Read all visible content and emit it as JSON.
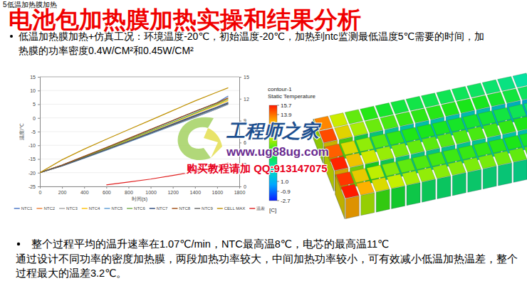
{
  "header": {
    "section": "5低温加热膜加热",
    "title": "电池包加热膜加热实操和结果分析"
  },
  "intro": [
    "低温加热膜加热+仿真工况：环境温度-20℃，初始温度-20℃，加热到ntc监测最低温度5℃需要的时间，加",
    "热膜的功率密度0.4W/CM²和0.45W/CM²"
  ],
  "chart_data": {
    "type": "line",
    "x_label": "时间(s)",
    "y_label": "温度/℃",
    "x": [
      0,
      200,
      400,
      600,
      800,
      1000,
      1200,
      1400,
      1600,
      1700
    ],
    "xlim": [
      0,
      1800
    ],
    "xticks": [
      0,
      200,
      400,
      600,
      800,
      1000,
      1200,
      1400,
      1600,
      1800
    ],
    "ylim": [
      -25,
      15
    ],
    "yticks": [
      -25,
      -20,
      -15,
      -10,
      -5,
      0,
      5,
      10,
      15
    ],
    "y2lim": [
      0,
      15
    ],
    "y2ticks": [
      0,
      3,
      6,
      9,
      12,
      15
    ],
    "grid": true,
    "legend": "bottom",
    "series": [
      {
        "name": "NTC1",
        "color": "#4472c4",
        "values": [
          -20,
          -17.2,
          -14.1,
          -10.9,
          -7.6,
          -4.3,
          -1.0,
          2.3,
          5.6,
          8.0
        ]
      },
      {
        "name": "NTC2",
        "color": "#ed7d31",
        "values": [
          -20,
          -17.5,
          -14.6,
          -11.7,
          -8.7,
          -5.7,
          -2.7,
          0.3,
          3.3,
          5.0
        ]
      },
      {
        "name": "NTC3",
        "color": "#a5a5a5",
        "values": [
          -20,
          -17.4,
          -14.4,
          -11.4,
          -8.3,
          -5.2,
          -2.1,
          1.0,
          4.1,
          5.8
        ]
      },
      {
        "name": "NTC4",
        "color": "#ffc000",
        "values": [
          -20,
          -17.3,
          -14.3,
          -11.2,
          -8.1,
          -4.9,
          -1.7,
          1.5,
          4.7,
          6.4
        ]
      },
      {
        "name": "NTC5",
        "color": "#5b9bd5",
        "values": [
          -20,
          -17.6,
          -14.7,
          -11.8,
          -8.8,
          -5.8,
          -2.8,
          0.2,
          3.4,
          5.0
        ]
      },
      {
        "name": "NTC6",
        "color": "#70ad47",
        "values": [
          -20,
          -17.3,
          -14.2,
          -11.1,
          -7.9,
          -4.7,
          -1.5,
          1.8,
          5.1,
          6.9
        ]
      },
      {
        "name": "NTC7",
        "color": "#264478",
        "values": [
          -20,
          -17.4,
          -14.5,
          -11.5,
          -8.5,
          -5.4,
          -2.3,
          0.8,
          3.9,
          5.5
        ]
      },
      {
        "name": "NTC8",
        "color": "#9e480e",
        "values": [
          -20,
          -17.2,
          -14.0,
          -10.8,
          -7.5,
          -4.2,
          -0.9,
          2.4,
          5.5,
          7.3
        ]
      },
      {
        "name": "NTC9",
        "color": "#636363",
        "values": [
          -20,
          -17.5,
          -14.6,
          -11.6,
          -8.6,
          -5.6,
          -2.5,
          0.6,
          3.7,
          5.3
        ]
      },
      {
        "name": "CELL MAX",
        "color": "#bf9000",
        "values": [
          -20,
          -15.3,
          -11.4,
          -7.8,
          -4.3,
          -0.8,
          2.7,
          6.2,
          9.4,
          11.0
        ]
      },
      {
        "name": "温差",
        "color": "#e02020",
        "axis": "y2",
        "values": [
          null,
          null,
          null,
          0.2,
          0.6,
          1.0,
          1.5,
          2.0,
          2.7,
          3.2
        ]
      }
    ]
  },
  "contour": {
    "title": "contour-1",
    "variable": "Static Temperature",
    "unit": "[C]",
    "range": [
      -2.7,
      15.7
    ],
    "ticks": [
      15.7,
      13.9,
      {
        "value": 1.0,
        "label": "1.0"
      },
      -0.9,
      -2.7
    ]
  },
  "watermark": {
    "brand": "工程师之家",
    "url": "www.ug88ug.com",
    "contact": "购买教程请加 QQ:913147075"
  },
  "conclusion": [
    "整个过程平均的温升速率在1.07℃/min，NTC最高温8℃，电芯的最高温11℃",
    "通过设计不同功率的密度加热膜，两段加热功率较大，中间加热功率较小，可有效减小低温加热温差，整个",
    "过程最大的温差3.2℃。"
  ]
}
